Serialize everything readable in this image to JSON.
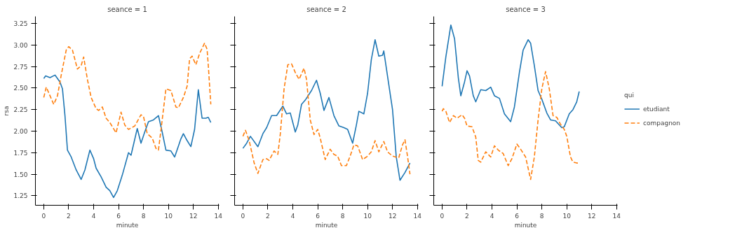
{
  "chart_data": [
    {
      "type": "line",
      "title": "seance = 1",
      "xlabel": "minute",
      "ylabel": "rsa",
      "xlim": [
        -0.67,
        14.07
      ],
      "ylim": [
        1.14,
        3.33
      ],
      "xticks": [
        0,
        2,
        4,
        6,
        8,
        10,
        12,
        14
      ],
      "yticks": [
        1.25,
        {
          "value": 1.5,
          "label": "1.50"
        },
        1.75,
        {
          "value": 2.0,
          "label": "2.00"
        },
        2.25,
        {
          "value": 2.5,
          "label": "2.50"
        },
        2.75,
        {
          "value": 3.0,
          "label": "3.00"
        },
        3.25
      ],
      "grid": false,
      "series": [
        {
          "color": "#1f77b4",
          "line_style": "solid",
          "x": [
            0,
            0.15,
            0.5,
            0.9,
            1.3,
            1.5,
            1.7,
            1.9,
            2.2,
            2.6,
            3.0,
            3.3,
            3.7,
            4.0,
            4.2,
            4.6,
            5.0,
            5.3,
            5.6,
            5.9,
            6.3,
            6.8,
            7.0,
            7.5,
            7.8,
            8.1,
            8.4,
            8.8,
            9.2,
            9.5,
            9.8,
            10.2,
            10.5,
            11.0,
            11.2,
            11.5,
            11.8,
            12.1,
            12.4,
            12.7,
            13.0,
            13.2,
            13.4
          ],
          "values": [
            2.61,
            2.64,
            2.62,
            2.65,
            2.57,
            2.49,
            2.18,
            1.78,
            1.7,
            1.55,
            1.44,
            1.55,
            1.78,
            1.68,
            1.57,
            1.47,
            1.35,
            1.31,
            1.23,
            1.31,
            1.49,
            1.75,
            1.72,
            2.03,
            1.86,
            1.99,
            2.11,
            2.13,
            2.18,
            1.99,
            1.78,
            1.77,
            1.7,
            1.91,
            1.97,
            1.89,
            1.82,
            2.02,
            2.48,
            2.15,
            2.15,
            2.16,
            2.1
          ]
        },
        {
          "color": "#ff7f0e",
          "line_style": "dashed",
          "x": [
            0,
            0.2,
            0.5,
            0.8,
            1.1,
            1.4,
            1.8,
            2.0,
            2.3,
            2.7,
            3.0,
            3.2,
            3.5,
            3.8,
            4.2,
            4.4,
            4.7,
            5.0,
            5.3,
            5.8,
            6.2,
            6.5,
            6.8,
            7.3,
            7.8,
            8.0,
            8.3,
            8.7,
            9.0,
            9.2,
            9.5,
            9.8,
            10.2,
            10.6,
            10.8,
            11.2,
            11.5,
            11.7,
            11.9,
            12.2,
            12.5,
            12.9,
            13.1,
            13.2,
            13.4
          ],
          "values": [
            2.39,
            2.51,
            2.41,
            2.31,
            2.41,
            2.65,
            2.94,
            2.98,
            2.94,
            2.72,
            2.76,
            2.86,
            2.6,
            2.39,
            2.26,
            2.24,
            2.28,
            2.15,
            2.1,
            1.98,
            2.22,
            2.07,
            2.02,
            2.06,
            2.19,
            2.17,
            1.97,
            1.92,
            1.8,
            1.78,
            2.13,
            2.49,
            2.47,
            2.28,
            2.27,
            2.39,
            2.52,
            2.84,
            2.87,
            2.77,
            2.9,
            3.02,
            2.95,
            2.76,
            2.31
          ]
        }
      ]
    },
    {
      "type": "line",
      "title": "seance = 2",
      "xlabel": "minute",
      "tick_labels": "x",
      "xlim": [
        -0.67,
        14.07
      ],
      "ylim": [
        1.14,
        3.33
      ],
      "xticks": [
        0,
        2,
        4,
        6,
        8,
        10,
        12,
        14
      ],
      "yticks": [
        1.25,
        1.5,
        1.75,
        2.0,
        2.25,
        2.5,
        2.75,
        3.0,
        3.25
      ],
      "grid": false,
      "series": [
        {
          "color": "#1f77b4",
          "line_style": "solid",
          "x": [
            0,
            0.3,
            0.6,
            1.2,
            1.6,
            1.9,
            2.3,
            2.7,
            3.2,
            3.5,
            3.8,
            4.2,
            4.4,
            4.7,
            5.0,
            5.5,
            5.9,
            6.2,
            6.5,
            6.9,
            7.3,
            7.7,
            8.1,
            8.4,
            8.8,
            9.1,
            9.3,
            9.7,
            10.0,
            10.3,
            10.6,
            10.9,
            11.2,
            11.3,
            11.7,
            12.0,
            12.3,
            12.6,
            13.0,
            13.4
          ],
          "values": [
            1.8,
            1.86,
            1.94,
            1.82,
            1.97,
            2.04,
            2.18,
            2.18,
            2.29,
            2.2,
            2.21,
            1.99,
            2.07,
            2.31,
            2.36,
            2.47,
            2.59,
            2.44,
            2.24,
            2.39,
            2.18,
            2.06,
            2.04,
            2.02,
            1.86,
            2.07,
            2.23,
            2.2,
            2.44,
            2.83,
            3.06,
            2.87,
            2.88,
            2.93,
            2.54,
            2.25,
            1.7,
            1.43,
            1.52,
            1.63
          ]
        },
        {
          "color": "#ff7f0e",
          "line_style": "dashed",
          "x": [
            0,
            0.2,
            0.5,
            0.9,
            1.2,
            1.6,
            1.9,
            2.1,
            2.5,
            2.8,
            3.0,
            3.3,
            3.6,
            3.9,
            4.2,
            4.5,
            4.9,
            5.1,
            5.4,
            5.7,
            6.0,
            6.2,
            6.6,
            7.0,
            7.3,
            7.6,
            7.9,
            8.3,
            8.6,
            8.9,
            9.2,
            9.6,
            10.0,
            10.3,
            10.6,
            10.9,
            11.3,
            11.6,
            12.0,
            12.5,
            12.8,
            13.0,
            13.2,
            13.4
          ],
          "values": [
            1.94,
            2.01,
            1.89,
            1.63,
            1.51,
            1.67,
            1.68,
            1.66,
            1.77,
            1.73,
            1.97,
            2.49,
            2.77,
            2.78,
            2.68,
            2.6,
            2.73,
            2.6,
            2.13,
            1.96,
            2.02,
            1.92,
            1.67,
            1.79,
            1.73,
            1.71,
            1.6,
            1.6,
            1.71,
            1.84,
            1.83,
            1.67,
            1.71,
            1.76,
            1.89,
            1.76,
            1.88,
            1.76,
            1.71,
            1.69,
            1.84,
            1.9,
            1.71,
            1.5
          ]
        }
      ]
    },
    {
      "type": "line",
      "title": "seance = 3",
      "xlabel": "minute",
      "tick_labels": "x",
      "xlim": [
        -0.67,
        14.07
      ],
      "ylim": [
        1.14,
        3.33
      ],
      "xticks": [
        0,
        2,
        4,
        6,
        8,
        10,
        12,
        14
      ],
      "yticks": [
        1.25,
        1.5,
        1.75,
        2.0,
        2.25,
        2.5,
        2.75,
        3.0,
        3.25
      ],
      "grid": false,
      "legend": "right",
      "legend_title": "qui",
      "series": [
        {
          "name": "etudiant",
          "color": "#1f77b4",
          "line_style": "solid",
          "x": [
            0,
            0.3,
            0.7,
            1.0,
            1.3,
            1.5,
            1.8,
            2.0,
            2.2,
            2.5,
            2.7,
            3.1,
            3.5,
            3.9,
            4.2,
            4.6,
            5.0,
            5.5,
            5.8,
            6.2,
            6.5,
            6.9,
            7.1,
            7.4,
            7.7,
            8.0,
            8.4,
            8.7,
            9.1,
            9.6,
            9.8,
            10.2,
            10.5,
            10.8,
            11.0
          ],
          "values": [
            2.52,
            2.86,
            3.23,
            3.07,
            2.62,
            2.41,
            2.57,
            2.7,
            2.64,
            2.41,
            2.34,
            2.48,
            2.47,
            2.51,
            2.41,
            2.38,
            2.2,
            2.11,
            2.28,
            2.68,
            2.94,
            3.06,
            3.02,
            2.76,
            2.47,
            2.37,
            2.21,
            2.13,
            2.12,
            2.04,
            2.05,
            2.2,
            2.25,
            2.34,
            2.46
          ]
        },
        {
          "name": "compagnon",
          "color": "#ff7f0e",
          "line_style": "dashed",
          "x": [
            0,
            0.1,
            0.3,
            0.6,
            0.9,
            1.2,
            1.6,
            1.8,
            2.0,
            2.4,
            2.7,
            2.9,
            3.1,
            3.5,
            3.9,
            4.2,
            4.5,
            4.9,
            5.3,
            5.6,
            6.0,
            6.3,
            6.7,
            7.1,
            7.4,
            7.7,
            8.0,
            8.3,
            8.6,
            8.9,
            9.2,
            9.5,
            9.8,
            10.0,
            10.3,
            10.5,
            10.8,
            11.0
          ],
          "values": [
            2.23,
            2.26,
            2.23,
            2.1,
            2.18,
            2.15,
            2.19,
            2.15,
            2.06,
            2.05,
            1.93,
            1.66,
            1.64,
            1.76,
            1.7,
            1.83,
            1.78,
            1.74,
            1.6,
            1.68,
            1.85,
            1.79,
            1.7,
            1.44,
            1.7,
            2.13,
            2.49,
            2.69,
            2.49,
            2.18,
            2.16,
            2.08,
            2.02,
            1.94,
            1.7,
            1.64,
            1.63,
            1.63
          ]
        }
      ]
    }
  ]
}
